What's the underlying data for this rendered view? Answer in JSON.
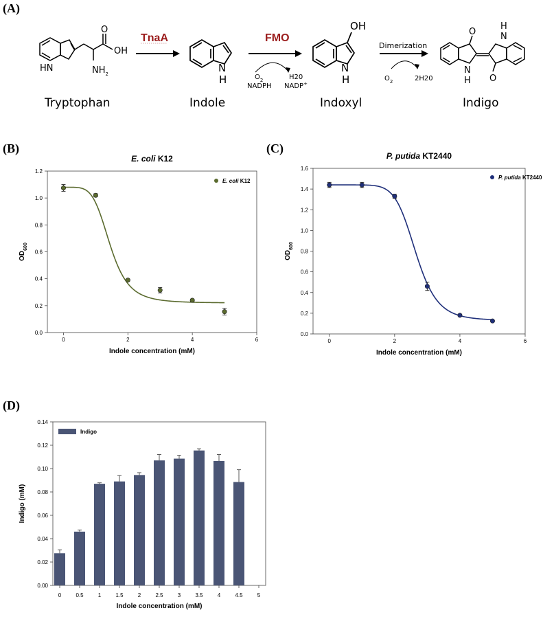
{
  "panels": {
    "a": "(A)",
    "b": "(B)",
    "c": "(C)",
    "d": "(D)"
  },
  "pathway": {
    "compounds": [
      "Tryptophan",
      "Indole",
      "Indoxyl",
      "Indigo"
    ],
    "enzymes": [
      "TnaA",
      "FMO"
    ],
    "step3_label": "Dimerization",
    "cofactors": {
      "fmo_in_top": "O2",
      "fmo_in_bottom": "NADPH",
      "fmo_out_top": "H20",
      "fmo_out_bottom": "NADP+",
      "dim_in": "O2",
      "dim_out": "2H20"
    },
    "atoms": {
      "trp_nh": "HN",
      "trp_nh2": "NH2",
      "trp_oh": "OH",
      "trp_o": "O",
      "indole_n": "N",
      "indole_h": "H",
      "indoxyl_oh": "OH",
      "indoxyl_n": "N",
      "indoxyl_h": "H",
      "indigo_o1": "O",
      "indigo_o2": "O",
      "indigo_h1": "H",
      "indigo_n1": "N",
      "indigo_h2": "H",
      "indigo_n2": "N"
    }
  },
  "chart_data": [
    {
      "type": "scatter",
      "title": "E. coli K12",
      "xlabel": "Indole concentration (mM)",
      "ylabel": "OD600",
      "xlim": [
        -0.5,
        6
      ],
      "ylim": [
        0,
        1.2
      ],
      "xticks": [
        "0",
        "2",
        "4",
        "6"
      ],
      "yticks": [
        "0.0",
        "0.2",
        "0.4",
        "0.6",
        "0.8",
        "1.0",
        "1.2"
      ],
      "color": "#5b6b2f",
      "legend": "top-right",
      "series": [
        {
          "name": "E. coli K12",
          "x": [
            0,
            1,
            2,
            3,
            4,
            5
          ],
          "y": [
            1.075,
            1.02,
            0.39,
            0.315,
            0.24,
            0.155
          ],
          "err": [
            0.025,
            0.012,
            0.008,
            0.02,
            0.008,
            0.025
          ]
        }
      ],
      "fit": {
        "top": 1.08,
        "bottom": 0.22,
        "ec50": 1.45,
        "hill": 5
      }
    },
    {
      "type": "scatter",
      "title": "P. putida KT2440",
      "xlabel": "Indole concentration (mM)",
      "ylabel": "OD600",
      "xlim": [
        -0.5,
        6
      ],
      "ylim": [
        0,
        1.6
      ],
      "xticks": [
        "0",
        "2",
        "4",
        "6"
      ],
      "yticks": [
        "0.0",
        "0.2",
        "0.4",
        "0.6",
        "0.8",
        "1.0",
        "1.2",
        "1.4",
        "1.6"
      ],
      "color": "#1f2f7a",
      "legend": "top-right",
      "series": [
        {
          "name": "P. putida KT2440",
          "x": [
            0,
            1,
            2,
            3,
            4,
            5
          ],
          "y": [
            1.44,
            1.44,
            1.33,
            0.46,
            0.18,
            0.125
          ],
          "err": [
            0.025,
            0.025,
            0.02,
            0.04,
            0.008,
            0.006
          ]
        }
      ],
      "fit": {
        "top": 1.44,
        "bottom": 0.13,
        "ec50": 2.65,
        "hill": 8
      }
    },
    {
      "type": "bar",
      "xlabel": "Indole concentration (mM)",
      "ylabel": "Indigo (mM)",
      "ylim": [
        0,
        0.14
      ],
      "yticks": [
        "0.00",
        "0.02",
        "0.04",
        "0.06",
        "0.08",
        "0.10",
        "0.12",
        "0.14"
      ],
      "categories": [
        "0",
        "0.5",
        "1",
        "1.5",
        "2",
        "2.5",
        "3",
        "3.5",
        "4",
        "4.5",
        "5"
      ],
      "color": "#4a5575",
      "legend": "top-left",
      "series": [
        {
          "name": "Indigo",
          "values": [
            0.0275,
            0.046,
            0.087,
            0.089,
            0.0945,
            0.107,
            0.1085,
            0.1155,
            0.1065,
            0.0885,
            null
          ],
          "err": [
            0.003,
            0.0015,
            0.0008,
            0.005,
            0.002,
            0.005,
            0.003,
            0.0015,
            0.0055,
            0.0105,
            null
          ]
        }
      ]
    }
  ]
}
